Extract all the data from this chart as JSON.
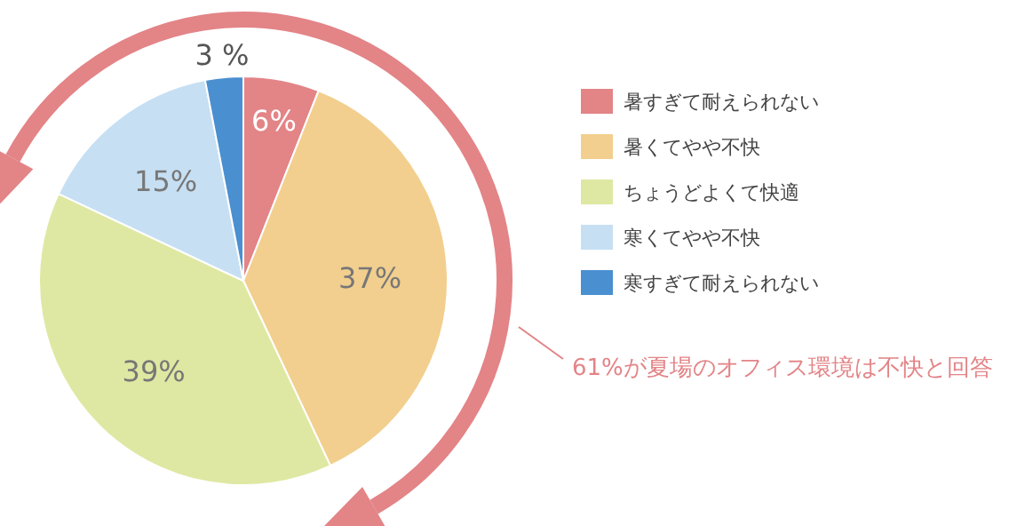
{
  "chart_data": {
    "type": "pie",
    "categories": [
      "暑すぎて耐えられない",
      "暑くてやや不快",
      "ちょうどよくて快適",
      "寒くてやや不快",
      "寒すぎて耐えられない"
    ],
    "values": [
      6,
      37,
      39,
      15,
      3
    ],
    "colors": [
      "#e38487",
      "#f2cf8e",
      "#dfe8a2",
      "#c6dff3",
      "#4a8fd0"
    ],
    "value_labels": [
      "6%",
      "37%",
      "39%",
      "15%",
      "3 %"
    ],
    "legend": "right",
    "annotations": [
      "61%が夏場のオフィス環境は不快と回答"
    ]
  }
}
